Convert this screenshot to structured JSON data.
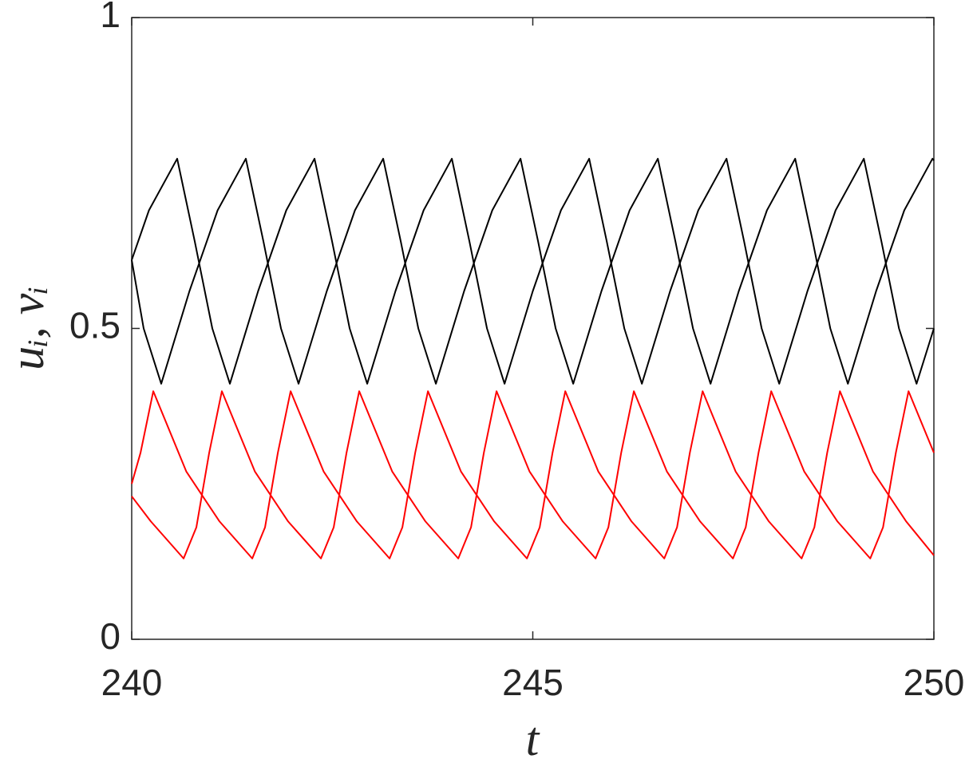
{
  "chart_data": {
    "type": "line",
    "xlabel": "t",
    "ylabel": "uᵢ, vᵢ",
    "xlim": [
      240,
      250
    ],
    "ylim": [
      0,
      1
    ],
    "xticks": [
      240,
      245,
      250
    ],
    "yticks": [
      0,
      0.5,
      1
    ],
    "grid": false,
    "series": [
      {
        "color": "#000000",
        "x": [
          240,
          240.215,
          240.567,
          240.786,
          241.005,
          241.224,
          241.576,
          241.927,
          242.279,
          242.498,
          242.717,
          242.936,
          243.288,
          243.639,
          243.991,
          244.21,
          244.429,
          244.648,
          245,
          245.351,
          245.703,
          245.922,
          246.141,
          246.36,
          246.712,
          247.063,
          247.415,
          247.634,
          247.853,
          248.072,
          248.424,
          248.775,
          249.127,
          249.346,
          249.565,
          249.784,
          250
        ],
        "values": [
          0.61,
          0.69,
          0.773,
          0.64,
          0.5,
          0.411,
          0.56,
          0.69,
          0.773,
          0.64,
          0.5,
          0.411,
          0.56,
          0.69,
          0.773,
          0.64,
          0.5,
          0.411,
          0.56,
          0.69,
          0.773,
          0.64,
          0.5,
          0.411,
          0.56,
          0.69,
          0.773,
          0.64,
          0.5,
          0.411,
          0.56,
          0.69,
          0.773,
          0.64,
          0.5,
          0.411,
          0.5
        ]
      },
      {
        "color": "#000000",
        "x": [
          240,
          240.149,
          240.368,
          240.72,
          241.071,
          241.423,
          241.642,
          241.861,
          242.08,
          242.432,
          242.783,
          243.135,
          243.354,
          243.573,
          243.792,
          244.144,
          244.495,
          244.847,
          245.066,
          245.285,
          245.504,
          245.856,
          246.207,
          246.559,
          246.778,
          246.997,
          247.216,
          247.568,
          247.919,
          248.271,
          248.49,
          248.709,
          248.928,
          249.28,
          249.631,
          249.983,
          250
        ],
        "values": [
          0.61,
          0.5,
          0.411,
          0.56,
          0.69,
          0.773,
          0.64,
          0.5,
          0.411,
          0.56,
          0.69,
          0.773,
          0.64,
          0.5,
          0.411,
          0.56,
          0.69,
          0.773,
          0.64,
          0.5,
          0.411,
          0.56,
          0.69,
          0.773,
          0.64,
          0.5,
          0.411,
          0.56,
          0.69,
          0.773,
          0.64,
          0.5,
          0.411,
          0.56,
          0.69,
          0.773,
          0.77
        ]
      },
      {
        "color": "#ff0000",
        "x": [
          240,
          240.11,
          240.269,
          240.68,
          241.092,
          241.503,
          241.662,
          241.822,
          241.981,
          242.392,
          242.804,
          243.215,
          243.374,
          243.534,
          243.693,
          244.104,
          244.516,
          244.927,
          245.086,
          245.246,
          245.405,
          245.816,
          246.228,
          246.639,
          246.798,
          246.958,
          247.117,
          247.528,
          247.94,
          248.351,
          248.51,
          248.67,
          248.829,
          249.24,
          249.652,
          250
        ],
        "values": [
          0.25,
          0.3,
          0.399,
          0.27,
          0.19,
          0.13,
          0.18,
          0.3,
          0.399,
          0.27,
          0.19,
          0.13,
          0.18,
          0.3,
          0.399,
          0.27,
          0.19,
          0.13,
          0.18,
          0.3,
          0.399,
          0.27,
          0.19,
          0.13,
          0.18,
          0.3,
          0.399,
          0.27,
          0.19,
          0.13,
          0.18,
          0.3,
          0.399,
          0.27,
          0.19,
          0.135
        ]
      },
      {
        "color": "#ff0000",
        "x": [
          240,
          240.236,
          240.647,
          240.806,
          240.966,
          241.124,
          241.535,
          241.947,
          242.359,
          242.518,
          242.678,
          242.836,
          243.247,
          243.659,
          244.071,
          244.23,
          244.39,
          244.548,
          244.959,
          245.371,
          245.783,
          245.942,
          246.102,
          246.26,
          246.671,
          247.083,
          247.495,
          247.654,
          247.814,
          247.972,
          248.383,
          248.795,
          249.207,
          249.366,
          249.526,
          249.684,
          250
        ],
        "values": [
          0.23,
          0.19,
          0.13,
          0.18,
          0.3,
          0.399,
          0.27,
          0.19,
          0.13,
          0.18,
          0.3,
          0.399,
          0.27,
          0.19,
          0.13,
          0.18,
          0.3,
          0.399,
          0.27,
          0.19,
          0.13,
          0.18,
          0.3,
          0.399,
          0.27,
          0.19,
          0.13,
          0.18,
          0.3,
          0.399,
          0.27,
          0.19,
          0.13,
          0.18,
          0.3,
          0.399,
          0.3
        ]
      }
    ]
  }
}
